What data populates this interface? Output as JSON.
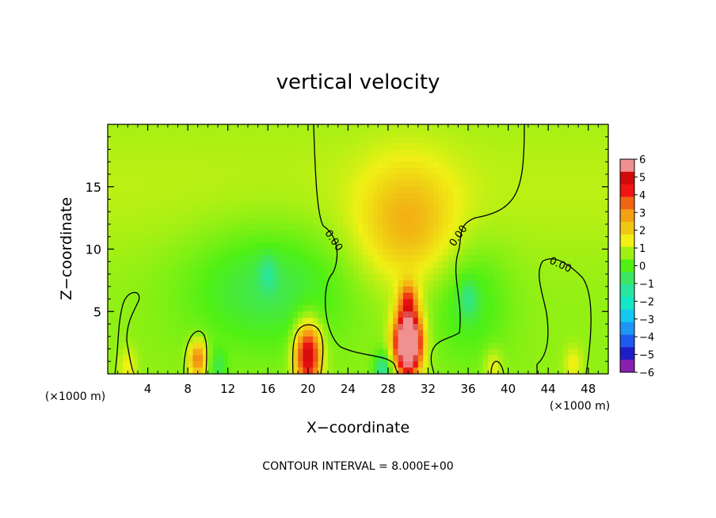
{
  "chart_data": {
    "type": "heatmap",
    "title": "vertical velocity",
    "xlabel": "X−coordinate",
    "ylabel": "Z−coordinate",
    "x_unit_left": "(×1000 m)",
    "x_unit_right": "(×1000 m)",
    "footer": "CONTOUR INTERVAL = 8.000E+00",
    "xlim": [
      0,
      50
    ],
    "ylim": [
      0,
      20
    ],
    "xticks": [
      4,
      8,
      12,
      16,
      20,
      24,
      28,
      32,
      36,
      40,
      44,
      48
    ],
    "yticks": [
      5,
      10,
      15
    ],
    "colorbar": {
      "range": [
        -6,
        6
      ],
      "levels": [
        -6,
        -5,
        -4,
        -3,
        -2,
        -1,
        0,
        1,
        2,
        3,
        4,
        5,
        6
      ],
      "colors": [
        "#8a1fb0",
        "#1e1ec8",
        "#1e5af0",
        "#1e96f5",
        "#14c8f0",
        "#14e6c8",
        "#28e6a0",
        "#3ce664",
        "#50f014",
        "#a0f014",
        "#f0f014",
        "#f0c814",
        "#f5a014",
        "#f06414",
        "#f01414",
        "#d20a0a",
        "#f09090"
      ]
    },
    "contour_label": "0.00",
    "features": [
      {
        "x": 30,
        "z": 2.5,
        "w": 9.0
      },
      {
        "x": 30,
        "z": 6.0,
        "w": 2.5
      },
      {
        "x": 20,
        "z": 1.5,
        "w": 5.0
      },
      {
        "x": 9,
        "z": 1.2,
        "w": 3.0
      },
      {
        "x": 2,
        "z": 0.6,
        "w": 1.0
      },
      {
        "x": 46.5,
        "z": 0.8,
        "w": 1.0
      },
      {
        "x": 38.5,
        "z": 0.6,
        "w": 1.0
      },
      {
        "x": 27.5,
        "z": 0.3,
        "w": -2.0
      },
      {
        "x": 16,
        "z": 8.0,
        "w": -1.0
      },
      {
        "x": 36,
        "z": 6.0,
        "w": -1.0
      },
      {
        "x": 11,
        "z": 0.5,
        "w": -1.0
      }
    ]
  }
}
